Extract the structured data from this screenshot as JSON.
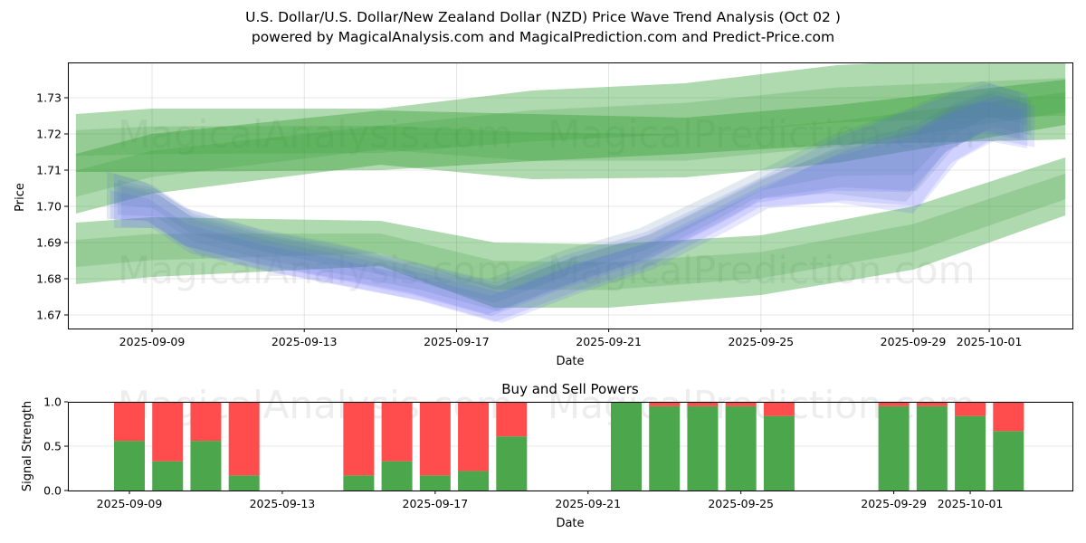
{
  "header": {
    "title": "U.S. Dollar/U.S. Dollar/New Zealand Dollar (NZD) Price Wave Trend Analysis (Oct 02 )",
    "subtitle": "powered by MagicalAnalysis.com and MagicalPrediction.com and Predict-Price.com"
  },
  "watermarks": [
    "MagicalAnalysis.com",
    "MagicalPrediction.com"
  ],
  "colors": {
    "green": "#2e9a2e",
    "blue": "#6666ff",
    "buy": "#4ca64c",
    "sell": "#ff4c4c"
  },
  "chart_data": [
    {
      "type": "area",
      "title": "",
      "xlabel": "Date",
      "ylabel": "Price",
      "ylim": [
        1.666,
        1.74
      ],
      "yticks": [
        "1.67",
        "1.68",
        "1.69",
        "1.70",
        "1.71",
        "1.72",
        "1.73"
      ],
      "xticks": [
        "2025-09-09",
        "2025-09-13",
        "2025-09-17",
        "2025-09-21",
        "2025-09-25",
        "2025-09-29",
        "2025-10-01"
      ],
      "grid": true,
      "bands": [
        {
          "name": "upper-green-wide",
          "color": "green",
          "x": [
            "2025-09-07",
            "2025-09-09",
            "2025-09-15",
            "2025-09-19",
            "2025-09-23",
            "2025-09-27",
            "2025-10-03"
          ],
          "upper": [
            1.7255,
            1.727,
            1.727,
            1.732,
            1.734,
            1.739,
            1.742
          ],
          "lower": [
            1.7095,
            1.7095,
            1.71,
            1.7125,
            1.7145,
            1.717,
            1.7185
          ]
        },
        {
          "name": "upper-green-core",
          "color": "green",
          "x": [
            "2025-09-07",
            "2025-09-09",
            "2025-09-15",
            "2025-09-19",
            "2025-09-23",
            "2025-09-27",
            "2025-10-03"
          ],
          "upper": [
            1.7145,
            1.72,
            1.7265,
            1.7255,
            1.7245,
            1.728,
            1.735
          ],
          "lower": [
            1.698,
            1.7035,
            1.7115,
            1.7075,
            1.708,
            1.712,
            1.7225
          ]
        },
        {
          "name": "lower-green-wide",
          "color": "green",
          "x": [
            "2025-09-07",
            "2025-09-09",
            "2025-09-15",
            "2025-09-18",
            "2025-09-21",
            "2025-09-25",
            "2025-09-29",
            "2025-10-03"
          ],
          "upper": [
            1.6955,
            1.697,
            1.696,
            1.69,
            1.6895,
            1.692,
            1.7,
            1.7135
          ],
          "lower": [
            1.6785,
            1.6805,
            1.6835,
            1.672,
            1.672,
            1.6755,
            1.6825,
            1.6975
          ]
        },
        {
          "name": "blue-wave",
          "color": "blue",
          "x": [
            "2025-09-08",
            "2025-09-09",
            "2025-09-10",
            "2025-09-12",
            "2025-09-14",
            "2025-09-16",
            "2025-09-18",
            "2025-09-20",
            "2025-09-22",
            "2025-09-24",
            "2025-09-25",
            "2025-09-27",
            "2025-09-29",
            "2025-09-30",
            "2025-10-01",
            "2025-10-02"
          ],
          "upper": [
            1.709,
            1.706,
            1.699,
            1.693,
            1.689,
            1.684,
            1.679,
            1.687,
            1.693,
            1.703,
            1.708,
            1.719,
            1.727,
            1.731,
            1.734,
            1.731
          ],
          "lower": [
            1.694,
            1.694,
            1.687,
            1.682,
            1.678,
            1.674,
            1.668,
            1.676,
            1.683,
            1.694,
            1.7,
            1.701,
            1.698,
            1.712,
            1.718,
            1.716
          ]
        }
      ]
    },
    {
      "type": "bar",
      "title": "Buy and Sell Powers",
      "xlabel": "Date",
      "ylabel": "Signal Strength",
      "ylim": [
        0,
        1.0
      ],
      "yticks": [
        "0.0",
        "0.5",
        "1.0"
      ],
      "xticks": [
        "2025-09-09",
        "2025-09-13",
        "2025-09-17",
        "2025-09-21",
        "2025-09-25",
        "2025-09-29",
        "2025-10-01"
      ],
      "categories": [
        "2025-09-09",
        "2025-09-10",
        "2025-09-11",
        "2025-09-12",
        "2025-09-15",
        "2025-09-16",
        "2025-09-17",
        "2025-09-18",
        "2025-09-19",
        "2025-09-22",
        "2025-09-23",
        "2025-09-24",
        "2025-09-25",
        "2025-09-26",
        "2025-09-29",
        "2025-09-30",
        "2025-10-01",
        "2025-10-02"
      ],
      "series": [
        {
          "name": "Buy",
          "color": "buy",
          "values": [
            0.56,
            0.33,
            0.56,
            0.17,
            0.17,
            0.33,
            0.17,
            0.22,
            0.61,
            1.0,
            0.95,
            0.95,
            0.95,
            0.84,
            0.95,
            0.95,
            0.84,
            0.67
          ]
        },
        {
          "name": "Sell",
          "color": "sell",
          "values": [
            0.44,
            0.67,
            0.44,
            0.83,
            0.83,
            0.67,
            0.83,
            0.78,
            0.39,
            0.0,
            0.05,
            0.05,
            0.05,
            0.16,
            0.05,
            0.05,
            0.16,
            0.33
          ]
        }
      ]
    }
  ]
}
